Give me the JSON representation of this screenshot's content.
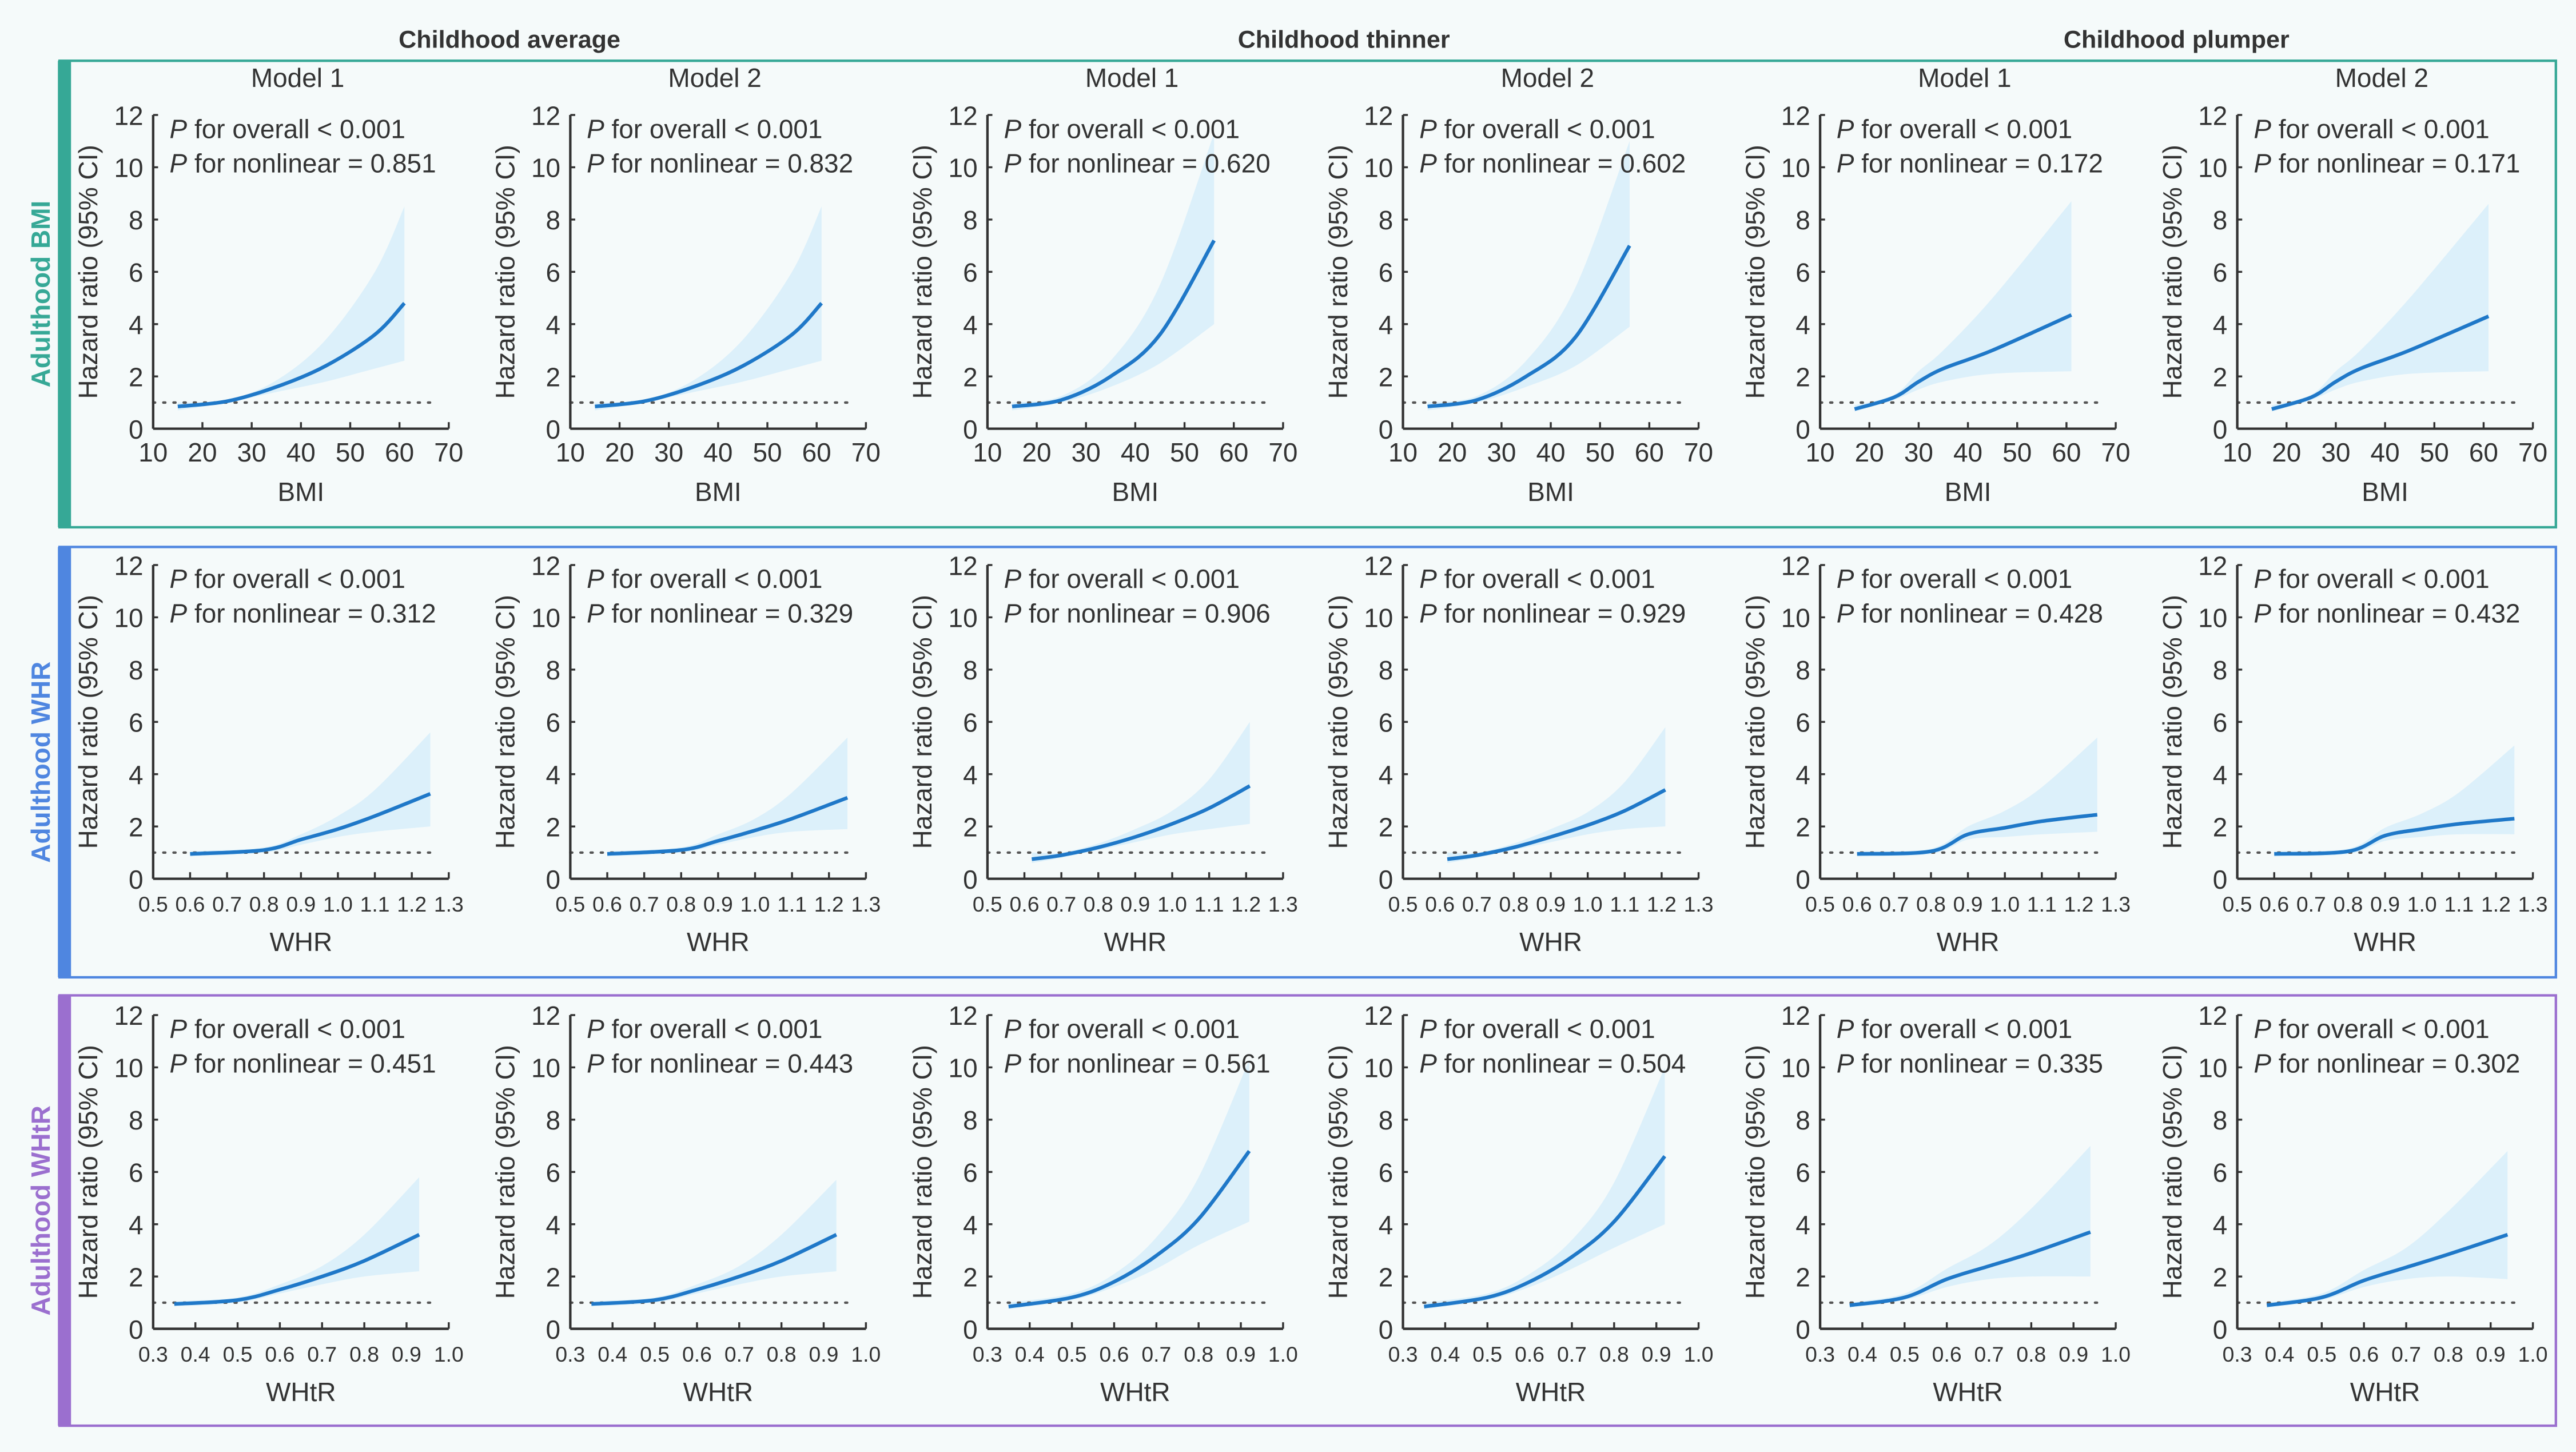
{
  "column_groups": [
    "Childhood average",
    "Childhood thinner",
    "Childhood plumper"
  ],
  "models": [
    "Model 1",
    "Model 2"
  ],
  "colors": {
    "background": "#f5fafa",
    "line": "#1f78c8",
    "band": "#dcf0fa",
    "reference": "#555555",
    "axis": "#333333"
  },
  "chart_data": [
    {
      "type": "line",
      "row_label": "Adulthood BMI",
      "row_color": "#36a896",
      "xlabel": "BMI",
      "ylabel": "Hazard ratio (95% CI)",
      "xlim": [
        10,
        70
      ],
      "xticks": [
        10,
        20,
        30,
        40,
        50,
        60,
        70
      ],
      "ylim": [
        0,
        12
      ],
      "yticks": [
        0,
        2,
        4,
        6,
        8,
        10,
        12
      ],
      "reference_y": 1,
      "panels": [
        {
          "group": "Childhood average",
          "model": "Model 1",
          "p_overall": "P for overall < 0.001",
          "p_nonlinear": "P for nonlinear = 0.851",
          "points": [
            [
              15,
              0.85,
              0.7,
              1.0
            ],
            [
              25,
              1.05,
              1.0,
              1.1
            ],
            [
              35,
              1.6,
              1.4,
              1.85
            ],
            [
              45,
              2.4,
              1.8,
              3.4
            ],
            [
              55,
              3.6,
              2.3,
              6.0
            ],
            [
              61,
              4.8,
              2.6,
              8.5
            ]
          ]
        },
        {
          "group": "Childhood average",
          "model": "Model 2",
          "p_overall": "P for overall < 0.001",
          "p_nonlinear": "P for nonlinear = 0.832",
          "points": [
            [
              15,
              0.85,
              0.7,
              1.0
            ],
            [
              25,
              1.05,
              1.0,
              1.1
            ],
            [
              35,
              1.6,
              1.4,
              1.85
            ],
            [
              45,
              2.4,
              1.8,
              3.4
            ],
            [
              55,
              3.6,
              2.3,
              6.0
            ],
            [
              61,
              4.8,
              2.6,
              8.5
            ]
          ]
        },
        {
          "group": "Childhood thinner",
          "model": "Model 1",
          "p_overall": "P for overall < 0.001",
          "p_nonlinear": "P for nonlinear = 0.620",
          "points": [
            [
              15,
              0.85,
              0.7,
              1.0
            ],
            [
              25,
              1.1,
              1.0,
              1.25
            ],
            [
              35,
              2.0,
              1.6,
              2.6
            ],
            [
              45,
              3.6,
              2.5,
              5.5
            ],
            [
              56,
              7.2,
              4.0,
              11.3
            ]
          ]
        },
        {
          "group": "Childhood thinner",
          "model": "Model 2",
          "p_overall": "P for overall < 0.001",
          "p_nonlinear": "P for nonlinear = 0.602",
          "points": [
            [
              15,
              0.85,
              0.7,
              1.0
            ],
            [
              25,
              1.1,
              1.0,
              1.25
            ],
            [
              35,
              2.0,
              1.6,
              2.6
            ],
            [
              45,
              3.5,
              2.4,
              5.4
            ],
            [
              56,
              7.0,
              3.9,
              11.0
            ]
          ]
        },
        {
          "group": "Childhood plumper",
          "model": "Model 1",
          "p_overall": "P for overall < 0.001",
          "p_nonlinear": "P for nonlinear = 0.172",
          "points": [
            [
              17,
              0.75,
              0.65,
              0.9
            ],
            [
              25,
              1.2,
              1.1,
              1.3
            ],
            [
              30,
              1.8,
              1.5,
              2.2
            ],
            [
              35,
              2.3,
              1.8,
              3.0
            ],
            [
              45,
              3.0,
              2.1,
              5.0
            ],
            [
              61,
              4.35,
              2.2,
              8.7
            ]
          ]
        },
        {
          "group": "Childhood plumper",
          "model": "Model 2",
          "p_overall": "P for overall < 0.001",
          "p_nonlinear": "P for nonlinear = 0.171",
          "points": [
            [
              17,
              0.75,
              0.65,
              0.9
            ],
            [
              25,
              1.2,
              1.1,
              1.3
            ],
            [
              30,
              1.8,
              1.5,
              2.2
            ],
            [
              35,
              2.3,
              1.8,
              3.0
            ],
            [
              45,
              3.0,
              2.1,
              5.0
            ],
            [
              61,
              4.3,
              2.2,
              8.6
            ]
          ]
        }
      ]
    },
    {
      "type": "line",
      "row_label": "Adulthood WHR",
      "row_color": "#4f86e0",
      "xlabel": "WHR",
      "ylabel": "Hazard ratio (95% CI)",
      "xlim": [
        0.5,
        1.3
      ],
      "xticks": [
        "0.5",
        "0.6",
        "0.7",
        "0.8",
        "0.9",
        "1.0",
        "1.1",
        "1.2",
        "1.3"
      ],
      "ylim": [
        0,
        12
      ],
      "yticks": [
        0,
        2,
        4,
        6,
        8,
        10,
        12
      ],
      "reference_y": 1,
      "panels": [
        {
          "group": "Childhood average",
          "model": "Model 1",
          "p_overall": "P for overall < 0.001",
          "p_nonlinear": "P for nonlinear = 0.312",
          "points": [
            [
              0.6,
              0.95,
              0.85,
              1.05
            ],
            [
              0.8,
              1.1,
              1.0,
              1.2
            ],
            [
              0.9,
              1.5,
              1.3,
              1.7
            ],
            [
              1.0,
              1.9,
              1.6,
              2.4
            ],
            [
              1.1,
              2.4,
              1.8,
              3.4
            ],
            [
              1.25,
              3.25,
              2.0,
              5.6
            ]
          ]
        },
        {
          "group": "Childhood average",
          "model": "Model 2",
          "p_overall": "P for overall < 0.001",
          "p_nonlinear": "P for nonlinear = 0.329",
          "points": [
            [
              0.6,
              0.95,
              0.85,
              1.05
            ],
            [
              0.8,
              1.1,
              1.0,
              1.2
            ],
            [
              0.9,
              1.45,
              1.3,
              1.7
            ],
            [
              1.0,
              1.85,
              1.6,
              2.3
            ],
            [
              1.1,
              2.3,
              1.8,
              3.3
            ],
            [
              1.25,
              3.1,
              1.9,
              5.4
            ]
          ]
        },
        {
          "group": "Childhood thinner",
          "model": "Model 1",
          "p_overall": "P for overall < 0.001",
          "p_nonlinear": "P for nonlinear = 0.906",
          "points": [
            [
              0.62,
              0.75,
              0.6,
              1.0
            ],
            [
              0.7,
              0.9,
              0.8,
              1.0
            ],
            [
              0.8,
              1.2,
              1.1,
              1.35
            ],
            [
              0.9,
              1.6,
              1.4,
              1.9
            ],
            [
              1.0,
              2.1,
              1.7,
              2.6
            ],
            [
              1.1,
              2.7,
              1.9,
              3.8
            ],
            [
              1.21,
              3.55,
              2.1,
              6.0
            ]
          ]
        },
        {
          "group": "Childhood thinner",
          "model": "Model 2",
          "p_overall": "P for overall < 0.001",
          "p_nonlinear": "P for nonlinear = 0.929",
          "points": [
            [
              0.62,
              0.75,
              0.6,
              1.0
            ],
            [
              0.7,
              0.9,
              0.8,
              1.0
            ],
            [
              0.8,
              1.2,
              1.1,
              1.35
            ],
            [
              0.9,
              1.6,
              1.4,
              1.9
            ],
            [
              1.0,
              2.05,
              1.7,
              2.55
            ],
            [
              1.1,
              2.6,
              1.9,
              3.7
            ],
            [
              1.21,
              3.4,
              2.0,
              5.8
            ]
          ]
        },
        {
          "group": "Childhood plumper",
          "model": "Model 1",
          "p_overall": "P for overall < 0.001",
          "p_nonlinear": "P for nonlinear = 0.428",
          "points": [
            [
              0.6,
              0.95,
              0.85,
              1.05
            ],
            [
              0.8,
              1.05,
              0.95,
              1.15
            ],
            [
              0.9,
              1.7,
              1.5,
              2.0
            ],
            [
              1.0,
              1.95,
              1.6,
              2.6
            ],
            [
              1.1,
              2.2,
              1.7,
              3.5
            ],
            [
              1.25,
              2.45,
              1.8,
              5.4
            ]
          ]
        },
        {
          "group": "Childhood plumper",
          "model": "Model 2",
          "p_overall": "P for overall < 0.001",
          "p_nonlinear": "P for nonlinear = 0.432",
          "points": [
            [
              0.6,
              0.95,
              0.85,
              1.05
            ],
            [
              0.8,
              1.05,
              0.95,
              1.15
            ],
            [
              0.9,
              1.65,
              1.45,
              1.95
            ],
            [
              1.0,
              1.9,
              1.6,
              2.5
            ],
            [
              1.1,
              2.1,
              1.7,
              3.3
            ],
            [
              1.25,
              2.3,
              1.7,
              5.1
            ]
          ]
        }
      ]
    },
    {
      "type": "line",
      "row_label": "Adulthood WHtR",
      "row_color": "#9b6fcf",
      "xlabel": "WHtR",
      "ylabel": "Hazard ratio (95% CI)",
      "xlim": [
        0.3,
        1.0
      ],
      "xticks": [
        "0.3",
        "0.4",
        "0.5",
        "0.6",
        "0.7",
        "0.8",
        "0.9",
        "1.0"
      ],
      "ylim": [
        0,
        12
      ],
      "yticks": [
        0,
        2,
        4,
        6,
        8,
        10,
        12
      ],
      "reference_y": 1,
      "panels": [
        {
          "group": "Childhood average",
          "model": "Model 1",
          "p_overall": "P for overall < 0.001",
          "p_nonlinear": "P for nonlinear = 0.451",
          "points": [
            [
              0.35,
              0.95,
              0.85,
              1.05
            ],
            [
              0.5,
              1.1,
              1.0,
              1.2
            ],
            [
              0.6,
              1.5,
              1.35,
              1.7
            ],
            [
              0.7,
              2.0,
              1.7,
              2.4
            ],
            [
              0.8,
              2.6,
              2.0,
              3.6
            ],
            [
              0.93,
              3.6,
              2.2,
              5.8
            ]
          ]
        },
        {
          "group": "Childhood average",
          "model": "Model 2",
          "p_overall": "P for overall < 0.001",
          "p_nonlinear": "P for nonlinear = 0.443",
          "points": [
            [
              0.35,
              0.95,
              0.85,
              1.05
            ],
            [
              0.5,
              1.1,
              1.0,
              1.2
            ],
            [
              0.6,
              1.5,
              1.35,
              1.7
            ],
            [
              0.7,
              2.0,
              1.7,
              2.4
            ],
            [
              0.8,
              2.6,
              2.0,
              3.6
            ],
            [
              0.93,
              3.6,
              2.2,
              5.7
            ]
          ]
        },
        {
          "group": "Childhood thinner",
          "model": "Model 1",
          "p_overall": "P for overall < 0.001",
          "p_nonlinear": "P for nonlinear = 0.561",
          "points": [
            [
              0.35,
              0.85,
              0.75,
              1.0
            ],
            [
              0.5,
              1.2,
              1.1,
              1.35
            ],
            [
              0.6,
              1.8,
              1.6,
              2.1
            ],
            [
              0.7,
              2.8,
              2.3,
              3.5
            ],
            [
              0.8,
              4.2,
              3.2,
              5.8
            ],
            [
              0.92,
              6.8,
              4.1,
              10.3
            ]
          ]
        },
        {
          "group": "Childhood thinner",
          "model": "Model 2",
          "p_overall": "P for overall < 0.001",
          "p_nonlinear": "P for nonlinear = 0.504",
          "points": [
            [
              0.35,
              0.85,
              0.75,
              1.0
            ],
            [
              0.5,
              1.2,
              1.1,
              1.35
            ],
            [
              0.6,
              1.8,
              1.6,
              2.1
            ],
            [
              0.7,
              2.75,
              2.3,
              3.4
            ],
            [
              0.8,
              4.1,
              3.1,
              5.6
            ],
            [
              0.92,
              6.6,
              4.0,
              10.0
            ]
          ]
        },
        {
          "group": "Childhood plumper",
          "model": "Model 1",
          "p_overall": "P for overall < 0.001",
          "p_nonlinear": "P for nonlinear = 0.335",
          "points": [
            [
              0.37,
              0.9,
              0.8,
              1.0
            ],
            [
              0.5,
              1.2,
              1.1,
              1.35
            ],
            [
              0.6,
              1.9,
              1.6,
              2.3
            ],
            [
              0.7,
              2.4,
              1.9,
              3.2
            ],
            [
              0.8,
              2.9,
              2.0,
              4.6
            ],
            [
              0.94,
              3.7,
              2.0,
              7.0
            ]
          ]
        },
        {
          "group": "Childhood plumper",
          "model": "Model 2",
          "p_overall": "P for overall < 0.001",
          "p_nonlinear": "P for nonlinear = 0.302",
          "points": [
            [
              0.37,
              0.9,
              0.8,
              1.0
            ],
            [
              0.5,
              1.2,
              1.1,
              1.35
            ],
            [
              0.6,
              1.85,
              1.6,
              2.25
            ],
            [
              0.7,
              2.35,
              1.9,
              3.1
            ],
            [
              0.8,
              2.85,
              2.0,
              4.5
            ],
            [
              0.94,
              3.6,
              1.9,
              6.8
            ]
          ]
        }
      ]
    }
  ]
}
